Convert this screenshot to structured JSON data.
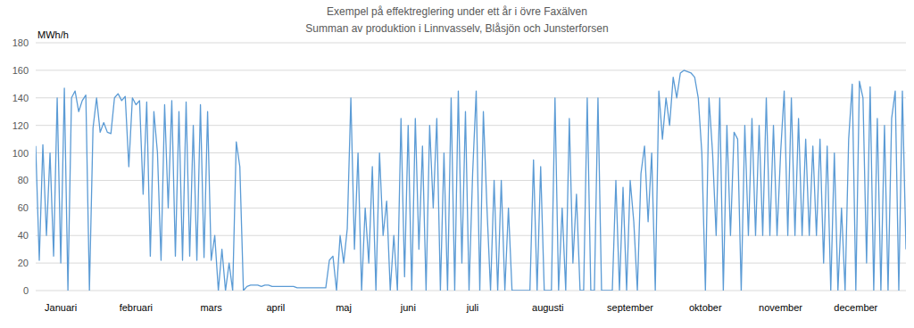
{
  "chart_data": {
    "type": "line",
    "title": "Exempel på effektreglering under ett år i övre Faxälven",
    "subtitle": "Summan av produktion i Linnvasselv, Blåsjön och Junsterforsen",
    "y_label": "MWh/h",
    "color": "#5b9bd5",
    "grid": true,
    "ylim": [
      0,
      180
    ],
    "yticks": [
      0,
      20,
      40,
      60,
      80,
      100,
      120,
      140,
      160,
      180
    ],
    "categories": [
      null,
      null,
      null,
      null,
      null,
      null,
      null,
      "Januari",
      null,
      null,
      null,
      null,
      null,
      null,
      null,
      null,
      null,
      null,
      null,
      null,
      null,
      null,
      null,
      null,
      null,
      null,
      null,
      null,
      "februari",
      null,
      null,
      null,
      null,
      null,
      null,
      null,
      null,
      null,
      null,
      null,
      null,
      null,
      null,
      null,
      null,
      null,
      null,
      null,
      null,
      "mars",
      null,
      null,
      null,
      null,
      null,
      null,
      null,
      null,
      null,
      null,
      null,
      null,
      null,
      null,
      null,
      null,
      null,
      "april",
      null,
      null,
      null,
      null,
      null,
      null,
      null,
      null,
      null,
      null,
      null,
      null,
      null,
      null,
      null,
      null,
      null,
      null,
      "maj",
      null,
      null,
      null,
      null,
      null,
      null,
      null,
      null,
      null,
      null,
      null,
      null,
      null,
      null,
      null,
      null,
      null,
      "juni",
      null,
      null,
      null,
      null,
      null,
      null,
      null,
      null,
      null,
      null,
      null,
      null,
      null,
      null,
      null,
      null,
      null,
      "juli",
      null,
      null,
      null,
      null,
      null,
      null,
      null,
      null,
      null,
      null,
      null,
      null,
      null,
      null,
      null,
      null,
      null,
      null,
      null,
      null,
      "augusti",
      null,
      null,
      null,
      null,
      null,
      null,
      null,
      null,
      null,
      null,
      null,
      null,
      null,
      null,
      null,
      null,
      null,
      null,
      null,
      null,
      null,
      null,
      "september",
      null,
      null,
      null,
      null,
      null,
      null,
      null,
      null,
      null,
      null,
      null,
      null,
      null,
      null,
      null,
      null,
      null,
      null,
      null,
      null,
      "oktober",
      null,
      null,
      null,
      null,
      null,
      null,
      null,
      null,
      null,
      null,
      null,
      null,
      null,
      null,
      null,
      null,
      null,
      null,
      null,
      null,
      "november",
      null,
      null,
      null,
      null,
      null,
      null,
      null,
      null,
      null,
      null,
      null,
      null,
      null,
      null,
      null,
      null,
      null,
      null,
      null,
      null,
      "december",
      null,
      null,
      null,
      null,
      null,
      null,
      null,
      null,
      null,
      null,
      null,
      null,
      null,
      null
    ],
    "values": [
      105,
      22,
      106,
      40,
      100,
      25,
      140,
      20,
      147,
      0,
      140,
      145,
      130,
      138,
      142,
      0,
      118,
      140,
      115,
      122,
      115,
      114,
      140,
      143,
      138,
      141,
      90,
      140,
      135,
      138,
      70,
      137,
      25,
      130,
      100,
      22,
      135,
      60,
      138,
      25,
      130,
      22,
      137,
      25,
      120,
      22,
      135,
      24,
      130,
      22,
      40,
      0,
      30,
      0,
      20,
      0,
      108,
      90,
      0,
      3,
      4,
      4,
      4,
      3,
      4,
      4,
      3,
      3,
      3,
      3,
      3,
      3,
      3,
      2,
      2,
      2,
      2,
      2,
      2,
      2,
      2,
      2,
      22,
      25,
      0,
      40,
      20,
      45,
      140,
      30,
      100,
      0,
      60,
      20,
      90,
      0,
      100,
      40,
      65,
      0,
      40,
      0,
      125,
      10,
      120,
      0,
      125,
      30,
      105,
      0,
      120,
      60,
      125,
      0,
      100,
      0,
      140,
      0,
      145,
      20,
      130,
      0,
      85,
      145,
      0,
      130,
      60,
      0,
      80,
      0,
      80,
      0,
      60,
      0,
      0,
      0,
      0,
      0,
      0,
      95,
      0,
      90,
      0,
      0,
      0,
      140,
      0,
      60,
      0,
      125,
      20,
      70,
      0,
      0,
      140,
      0,
      0,
      140,
      0,
      0,
      0,
      0,
      80,
      0,
      75,
      0,
      80,
      50,
      0,
      85,
      105,
      50,
      100,
      0,
      145,
      110,
      140,
      120,
      155,
      140,
      158,
      160,
      159,
      158,
      155,
      140,
      100,
      0,
      140,
      100,
      40,
      140,
      0,
      120,
      40,
      115,
      110,
      0,
      120,
      40,
      125,
      40,
      120,
      40,
      140,
      40,
      120,
      40,
      100,
      145,
      40,
      140,
      40,
      125,
      40,
      110,
      40,
      105,
      40,
      110,
      20,
      105,
      0,
      100,
      0,
      60,
      0,
      110,
      150,
      0,
      152,
      140,
      20,
      148,
      0,
      125,
      0,
      120,
      0,
      125,
      145,
      0,
      145,
      30
    ]
  }
}
